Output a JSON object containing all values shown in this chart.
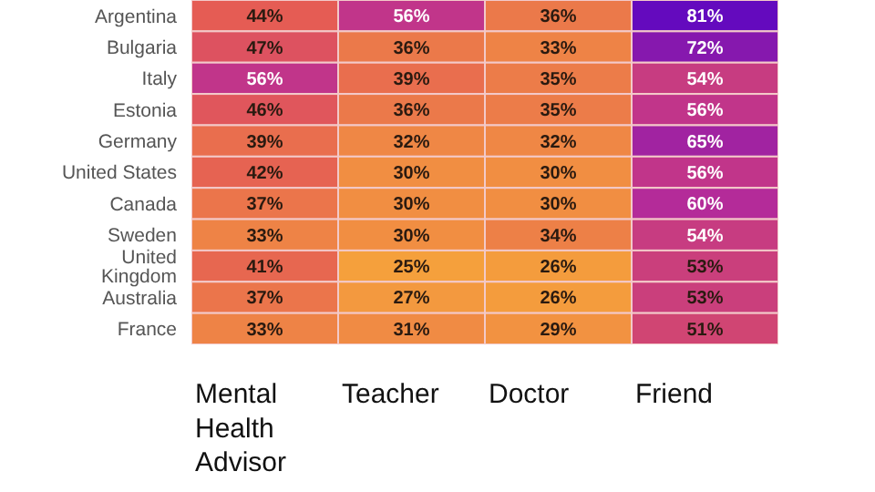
{
  "chart_data": {
    "type": "heatmap",
    "categories": [
      "Mental Health Advisor",
      "Teacher",
      "Doctor",
      "Friend"
    ],
    "y_categories": [
      "Argentina",
      "Bulgaria",
      "Italy",
      "Estonia",
      "Germany",
      "United States",
      "Canada",
      "Sweden",
      "United Kingdom",
      "Australia",
      "France"
    ],
    "cells": [
      [
        44,
        56,
        36,
        81
      ],
      [
        47,
        36,
        33,
        72
      ],
      [
        56,
        39,
        35,
        54
      ],
      [
        46,
        36,
        35,
        56
      ],
      [
        39,
        32,
        32,
        65
      ],
      [
        42,
        30,
        30,
        56
      ],
      [
        37,
        30,
        30,
        60
      ],
      [
        33,
        30,
        34,
        54
      ],
      [
        41,
        25,
        26,
        53
      ],
      [
        37,
        27,
        26,
        53
      ],
      [
        33,
        31,
        29,
        51
      ]
    ],
    "cell_labels": [
      [
        "44%",
        "56%",
        "36%",
        "81%"
      ],
      [
        "47%",
        "36%",
        "33%",
        "72%"
      ],
      [
        "56%",
        "39%",
        "35%",
        "54%"
      ],
      [
        "46%",
        "36%",
        "35%",
        "56%"
      ],
      [
        "39%",
        "32%",
        "32%",
        "65%"
      ],
      [
        "42%",
        "30%",
        "30%",
        "56%"
      ],
      [
        "37%",
        "30%",
        "30%",
        "60%"
      ],
      [
        "33%",
        "30%",
        "34%",
        "54%"
      ],
      [
        "41%",
        "25%",
        "26%",
        "53%"
      ],
      [
        "37%",
        "27%",
        "26%",
        "53%"
      ],
      [
        "33%",
        "31%",
        "29%",
        "51%"
      ]
    ]
  }
}
